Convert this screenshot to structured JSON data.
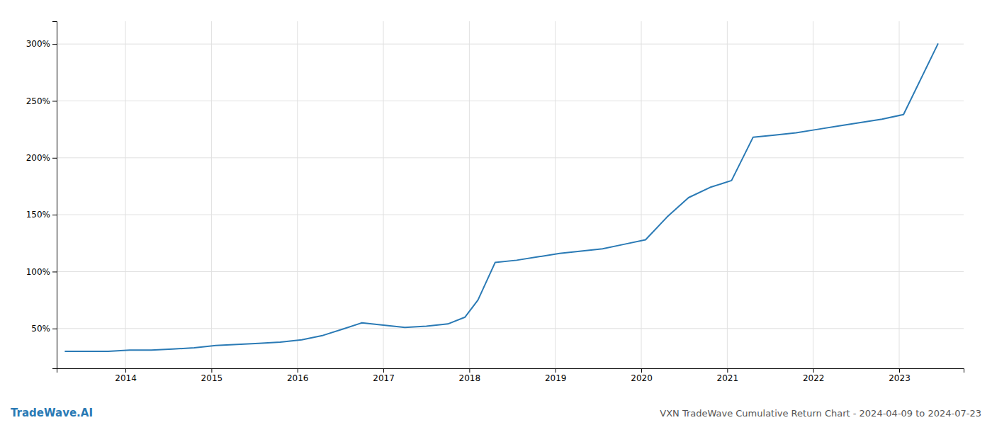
{
  "chart_data": {
    "type": "line",
    "title": "VXN TradeWave Cumulative Return Chart - 2024-04-09 to 2024-07-23",
    "annotations": [
      "TradeWave.AI"
    ],
    "x": [
      2013.3,
      2013.55,
      2013.8,
      2014.05,
      2014.3,
      2014.55,
      2014.8,
      2015.05,
      2015.3,
      2015.55,
      2015.8,
      2016.05,
      2016.3,
      2016.55,
      2016.75,
      2017.0,
      2017.25,
      2017.5,
      2017.75,
      2017.95,
      2018.1,
      2018.3,
      2018.55,
      2018.8,
      2019.05,
      2019.3,
      2019.55,
      2019.8,
      2020.05,
      2020.3,
      2020.55,
      2020.8,
      2021.05,
      2021.3,
      2021.55,
      2021.8,
      2022.05,
      2022.3,
      2022.55,
      2022.8,
      2023.05,
      2023.45
    ],
    "values": [
      30,
      30,
      30,
      31,
      31,
      32,
      33,
      35,
      36,
      37,
      38,
      40,
      44,
      50,
      55,
      53,
      51,
      52,
      54,
      60,
      75,
      108,
      110,
      113,
      116,
      118,
      120,
      124,
      128,
      148,
      165,
      174,
      180,
      218,
      220,
      222,
      225,
      228,
      231,
      234,
      238,
      300
    ],
    "color": "#2a7ab5",
    "xlim": [
      2013.2,
      2023.75
    ],
    "xticks": [
      2014,
      2015,
      2016,
      2017,
      2018,
      2019,
      2020,
      2021,
      2022,
      2023
    ],
    "ylim": [
      15,
      320
    ],
    "yticks": [
      {
        "value": 50,
        "label": "50%"
      },
      {
        "value": 100,
        "label": "100%"
      },
      {
        "value": 150,
        "label": "150%"
      },
      {
        "value": 200,
        "label": "200%"
      },
      {
        "value": 250,
        "label": "250%"
      },
      {
        "value": 300,
        "label": "300%"
      }
    ],
    "grid": true
  }
}
